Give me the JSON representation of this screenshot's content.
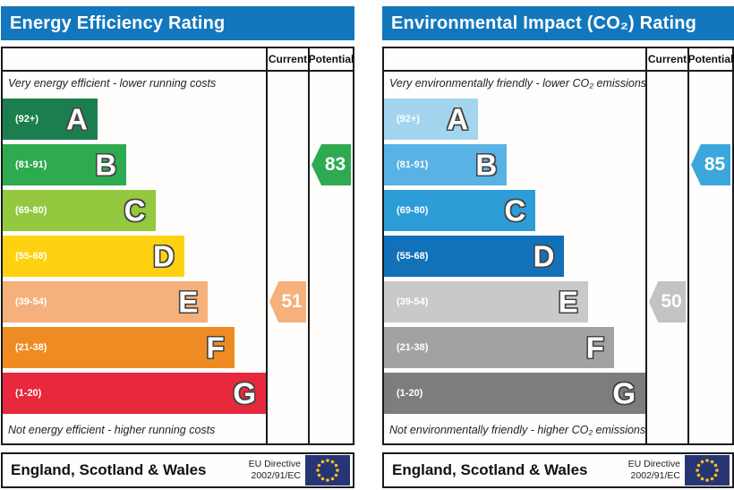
{
  "chart_data": [
    {
      "type": "bar",
      "title": "Energy Efficiency Rating",
      "categories": [
        "A",
        "B",
        "C",
        "D",
        "E",
        "F",
        "G"
      ],
      "range_labels": [
        "(92+)",
        "(81-91)",
        "(69-80)",
        "(55-68)",
        "(39-54)",
        "(21-38)",
        "(1-20)"
      ],
      "bar_length_pct": [
        36,
        47,
        58,
        69,
        78,
        88,
        100
      ],
      "colors": [
        "#1b7e4e",
        "#2eaa50",
        "#94c83f",
        "#fed211",
        "#f5b07c",
        "#ee8c23",
        "#e8283d"
      ],
      "columns": [
        "Current",
        "Potential"
      ],
      "current_value": 51,
      "current_band": "E",
      "potential_value": 83,
      "potential_band": "B",
      "top_note": "Very energy efficient - lower running costs",
      "bottom_note": "Not energy efficient - higher running costs",
      "legend_position": "none",
      "grid": false
    },
    {
      "type": "bar",
      "title": "Environmental Impact (CO₂) Rating",
      "categories": [
        "A",
        "B",
        "C",
        "D",
        "E",
        "F",
        "G"
      ],
      "range_labels": [
        "(92+)",
        "(81-91)",
        "(69-80)",
        "(55-68)",
        "(39-54)",
        "(21-38)",
        "(1-20)"
      ],
      "bar_length_pct": [
        36,
        47,
        58,
        69,
        78,
        88,
        100
      ],
      "colors": [
        "#a3d6ee",
        "#58b2e3",
        "#2d9dd8",
        "#1172b9",
        "#c9c9c9",
        "#a2a2a2",
        "#7d7d7d"
      ],
      "columns": [
        "Current",
        "Potential"
      ],
      "current_value": 50,
      "current_band": "E",
      "potential_value": 85,
      "potential_band": "B",
      "top_note": "Very environmentally friendly - lower CO₂ emissions",
      "bottom_note": "Not environmentally friendly - higher CO₂ emissions",
      "legend_position": "none",
      "grid": false
    }
  ],
  "panels": [
    {
      "title": "Energy Efficiency Rating",
      "header": {
        "current": "Current",
        "potential": "Potential"
      },
      "top_note": "Very energy efficient - lower running costs",
      "bottom_note": "Not energy efficient - higher running costs",
      "bands": [
        {
          "letter": "A",
          "range": "(92+)",
          "color": "#1b7e4e",
          "width_pct": 36
        },
        {
          "letter": "B",
          "range": "(81-91)",
          "color": "#2eaa50",
          "width_pct": 47
        },
        {
          "letter": "C",
          "range": "(69-80)",
          "color": "#94c83f",
          "width_pct": 58
        },
        {
          "letter": "D",
          "range": "(55-68)",
          "color": "#fed211",
          "width_pct": 69
        },
        {
          "letter": "E",
          "range": "(39-54)",
          "color": "#f5b07c",
          "width_pct": 78
        },
        {
          "letter": "F",
          "range": "(21-38)",
          "color": "#ee8c23",
          "width_pct": 88
        },
        {
          "letter": "G",
          "range": "(1-20)",
          "color": "#e8283d",
          "width_pct": 100
        }
      ],
      "current": {
        "value": "51",
        "band": "E",
        "color": "#f5b07c"
      },
      "potential": {
        "value": "83",
        "band": "B",
        "color": "#2eaa50"
      },
      "footer": {
        "region": "England, Scotland & Wales",
        "directive_line1": "EU Directive",
        "directive_line2": "2002/91/EC"
      }
    },
    {
      "title": "Environmental Impact (CO₂) Rating",
      "header": {
        "current": "Current",
        "potential": "Potential"
      },
      "top_note": "Very environmentally friendly - lower CO₂ emissions",
      "bottom_note": "Not environmentally friendly - higher CO₂ emissions",
      "bands": [
        {
          "letter": "A",
          "range": "(92+)",
          "color": "#a3d6ee",
          "width_pct": 36
        },
        {
          "letter": "B",
          "range": "(81-91)",
          "color": "#58b2e3",
          "width_pct": 47
        },
        {
          "letter": "C",
          "range": "(69-80)",
          "color": "#2d9dd8",
          "width_pct": 58
        },
        {
          "letter": "D",
          "range": "(55-68)",
          "color": "#1172b9",
          "width_pct": 69
        },
        {
          "letter": "E",
          "range": "(39-54)",
          "color": "#c9c9c9",
          "width_pct": 78
        },
        {
          "letter": "F",
          "range": "(21-38)",
          "color": "#a2a2a2",
          "width_pct": 88
        },
        {
          "letter": "G",
          "range": "(1-20)",
          "color": "#7d7d7d",
          "width_pct": 100
        }
      ],
      "current": {
        "value": "50",
        "band": "E",
        "color": "#c3c3c3"
      },
      "potential": {
        "value": "85",
        "band": "B",
        "color": "#3ca7dc"
      },
      "footer": {
        "region": "England, Scotland & Wales",
        "directive_line1": "EU Directive",
        "directive_line2": "2002/91/EC"
      }
    }
  ],
  "colors": {
    "title_bar": "#1377bd",
    "border": "#1a1a1a",
    "flag_navy": "#283575",
    "flag_star": "#f0c419"
  }
}
